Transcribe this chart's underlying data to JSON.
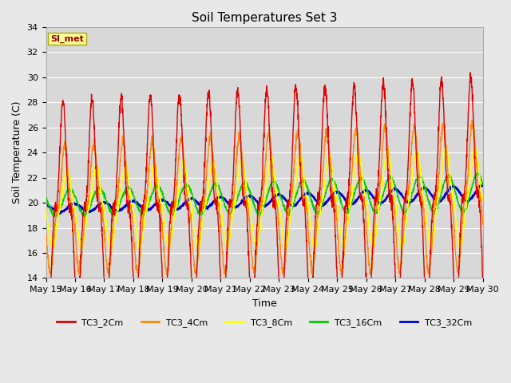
{
  "title": "Soil Temperatures Set 3",
  "xlabel": "Time",
  "ylabel": "Soil Temperature (C)",
  "ylim": [
    14,
    34
  ],
  "yticks": [
    14,
    16,
    18,
    20,
    22,
    24,
    26,
    28,
    30,
    32,
    34
  ],
  "background_color": "#e8e8e8",
  "plot_bg_color": "#d8d8d8",
  "annotation_text": "SI_met",
  "annotation_bg": "#ffff99",
  "annotation_fg": "#990000",
  "series": {
    "TC3_2Cm": {
      "color": "#dd0000",
      "lw": 1.0
    },
    "TC3_4Cm": {
      "color": "#ff8800",
      "lw": 1.0
    },
    "TC3_8Cm": {
      "color": "#ffff00",
      "lw": 1.0
    },
    "TC3_16Cm": {
      "color": "#00cc00",
      "lw": 1.0
    },
    "TC3_32Cm": {
      "color": "#0000cc",
      "lw": 1.5
    }
  },
  "n_days": 15,
  "pts_per_day": 144,
  "x_tick_labels": [
    "May 15",
    "May 16",
    "May 17",
    "May 18",
    "May 19",
    "May 20",
    "May 21",
    "May 22",
    "May 23",
    "May 24",
    "May 25",
    "May 26",
    "May 27",
    "May 28",
    "May 29",
    "May 30"
  ]
}
